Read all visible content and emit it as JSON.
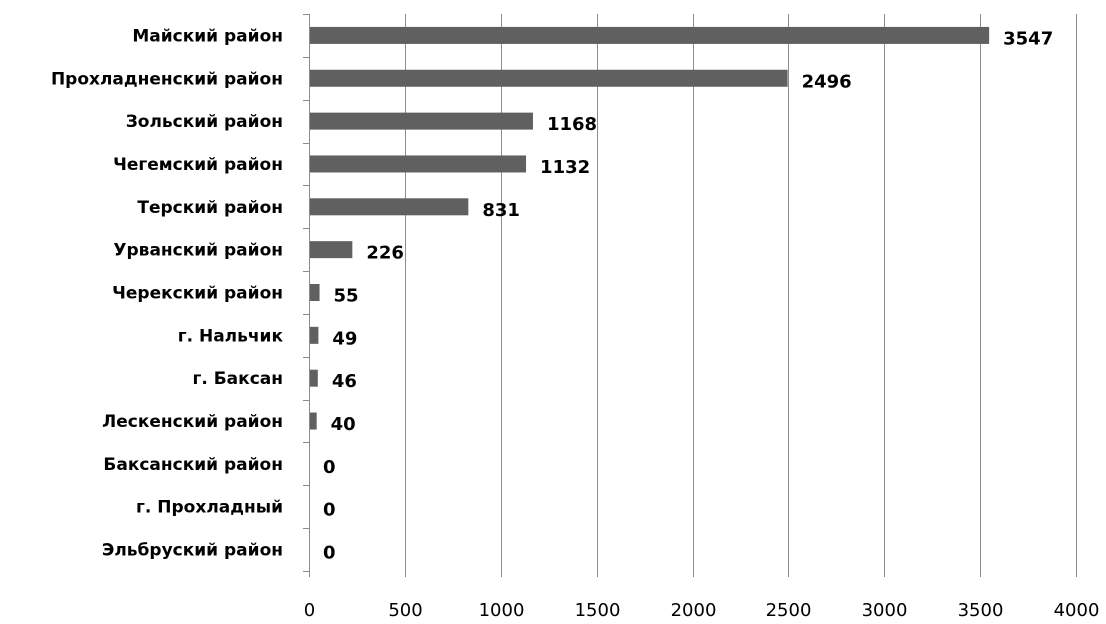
{
  "chart_data": {
    "type": "bar",
    "orientation": "horizontal",
    "categories": [
      "Майский район",
      "Прохладненский район",
      "Зольский район",
      "Чегемский район",
      "Терский район",
      "Урванский район",
      "Черекский район",
      "г. Нальчик",
      "г. Баксан",
      "Лескенский район",
      "Баксанский район",
      "г. Прохладный",
      "Эльбруский район"
    ],
    "values": [
      3547,
      2496,
      1168,
      1132,
      831,
      226,
      55,
      49,
      46,
      40,
      0,
      0,
      0
    ],
    "data_labels": [
      "3547",
      "2496",
      "1168",
      "1132",
      "831",
      "226",
      "55",
      "49",
      "46",
      "40",
      "0",
      "0",
      "0"
    ],
    "x_ticks": [
      "0",
      "500",
      "1000",
      "1500",
      "2000",
      "2500",
      "3000",
      "3500",
      "4000"
    ],
    "xlim": [
      0,
      4000
    ],
    "grid": "vertical",
    "legend": "none",
    "title": "",
    "xlabel": "",
    "ylabel": "",
    "colors": {
      "bar": "#606060",
      "grid": "#8c8c8c",
      "text": "#000000"
    }
  }
}
